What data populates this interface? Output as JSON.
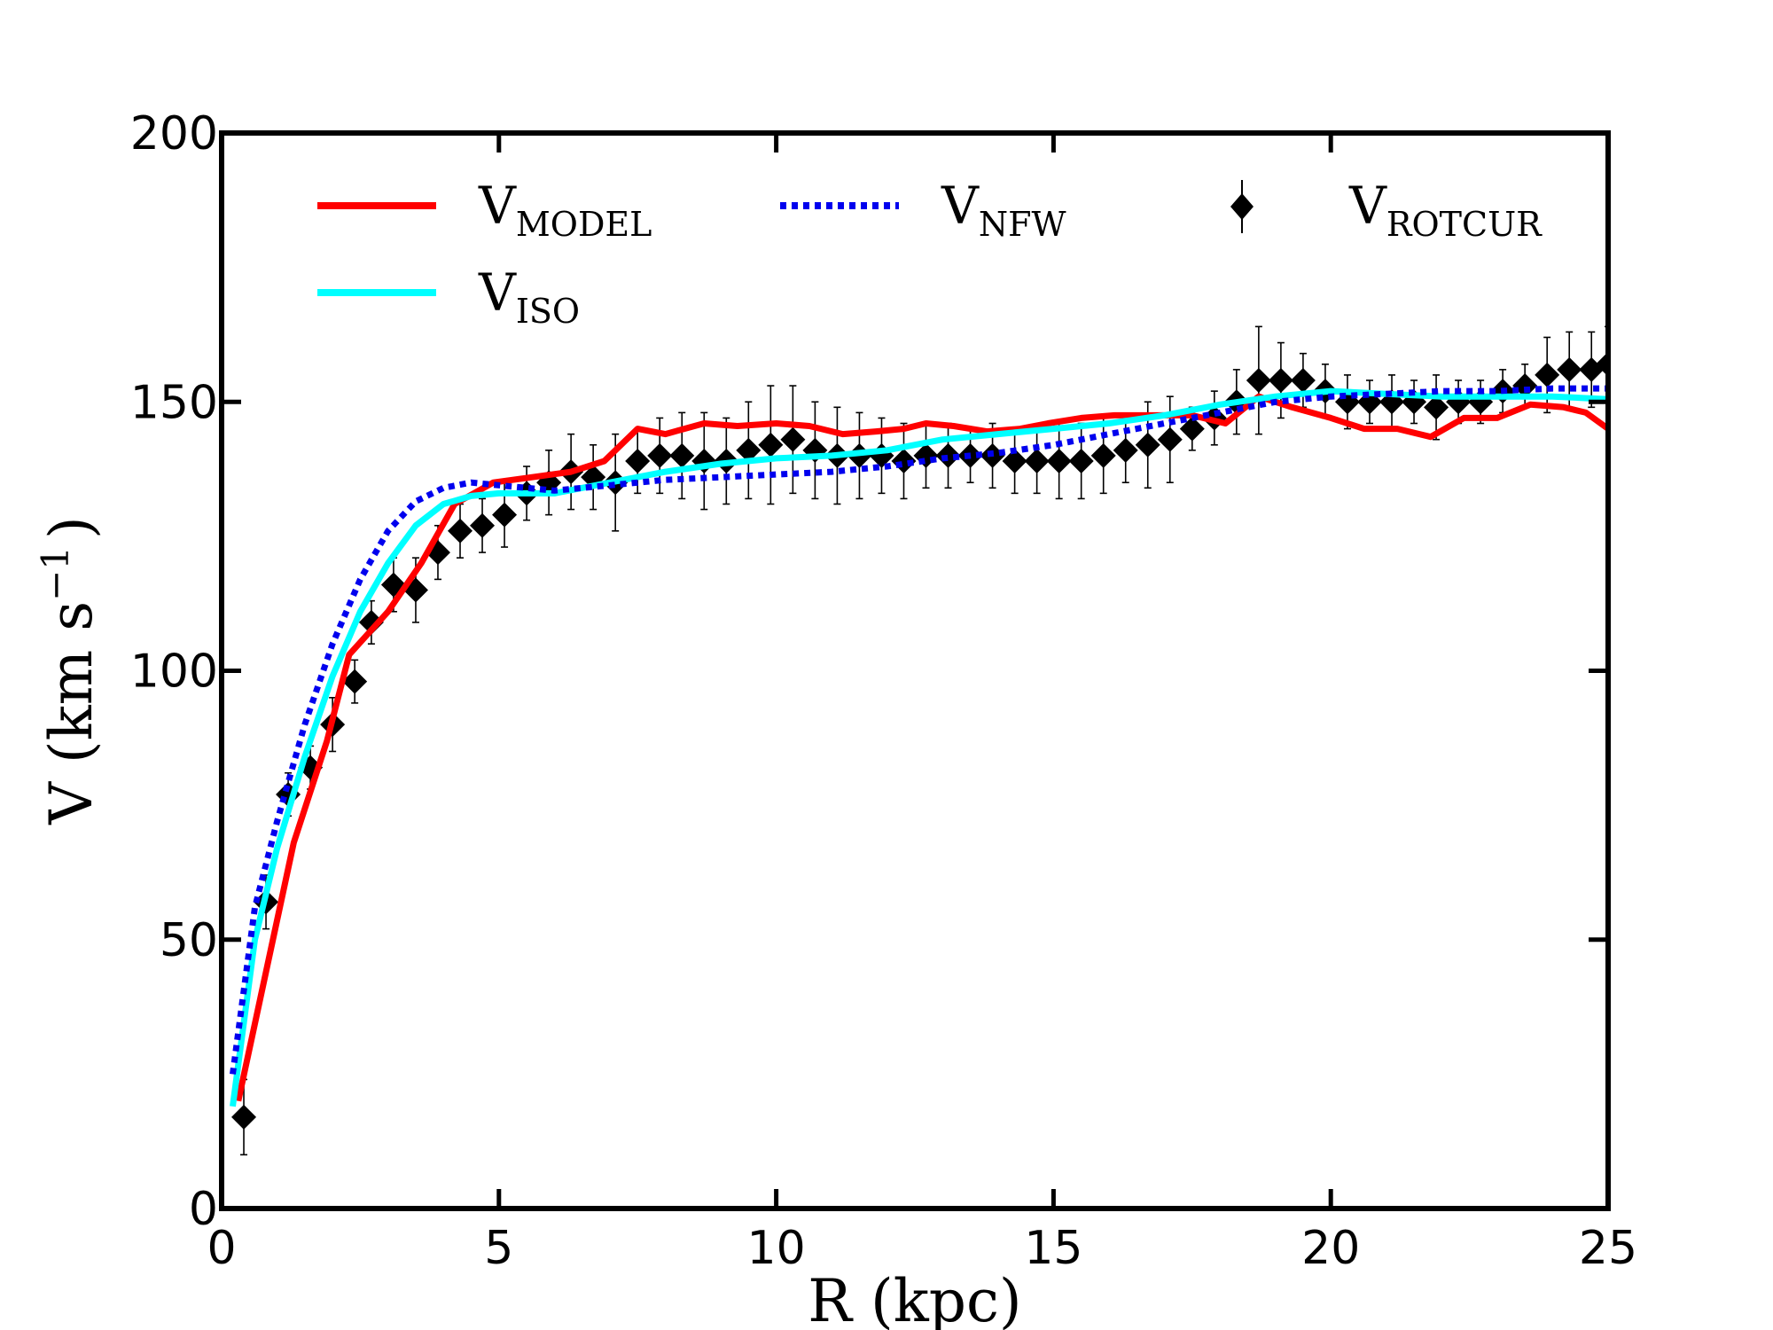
{
  "chart_data": {
    "type": "line",
    "title": "",
    "xlabel": "R (kpc)",
    "ylabel": "V (km s",
    "ylabel_sup": "−1",
    "ylabel_close": ")",
    "xlim": [
      0,
      25
    ],
    "ylim": [
      0,
      200
    ],
    "xticks": [
      0,
      5,
      10,
      15,
      20,
      25
    ],
    "yticks": [
      0,
      50,
      100,
      150,
      200
    ],
    "grid": false,
    "legend": {
      "placement": "top",
      "entries": [
        {
          "main": "V",
          "sub": "MODEL",
          "color": "#ff0000",
          "style": "solid"
        },
        {
          "main": "V",
          "sub": "NFW",
          "color": "#0000ee",
          "style": "dotted"
        },
        {
          "main": "V",
          "sub": "ROTCUR",
          "color": "#000000",
          "style": "marker"
        },
        {
          "main": "V",
          "sub": "ISO",
          "color": "#00ffff",
          "style": "solid"
        }
      ]
    },
    "series": [
      {
        "name": "V_MODEL",
        "color": "#ff0000",
        "style": "solid",
        "x": [
          0.3,
          1.3,
          1.9,
          2.3,
          3.0,
          3.6,
          4.2,
          4.9,
          5.6,
          6.3,
          6.9,
          7.5,
          8.0,
          8.7,
          9.3,
          10.0,
          10.6,
          11.2,
          11.8,
          12.3,
          12.7,
          13.2,
          13.8,
          14.4,
          14.9,
          15.5,
          16.1,
          16.8,
          17.5,
          18.1,
          18.7,
          19.3,
          20.0,
          20.6,
          21.2,
          21.8,
          22.4,
          23.0,
          23.6,
          24.2,
          24.6,
          25.0
        ],
        "values": [
          20,
          68,
          87,
          103,
          111,
          120,
          131,
          135,
          136,
          137,
          139,
          145,
          144,
          146,
          145.5,
          146,
          145.5,
          144,
          144.5,
          145,
          146,
          145.5,
          144.5,
          145,
          146,
          147,
          147.5,
          147.5,
          147.5,
          146,
          151,
          149,
          147,
          145,
          145,
          143.5,
          147,
          147,
          149.5,
          149,
          148,
          145
        ]
      },
      {
        "name": "V_ISO",
        "color": "#00ffff",
        "style": "solid",
        "x": [
          0.2,
          0.6,
          1.0,
          1.5,
          2.0,
          2.5,
          3.0,
          3.5,
          4.0,
          4.5,
          5.0,
          6.0,
          7.0,
          8.0,
          9.0,
          10.0,
          11.0,
          12.0,
          13.0,
          14.0,
          15.0,
          16.0,
          17.0,
          18.0,
          19.0,
          20.0,
          21.0,
          22.0,
          23.0,
          24.0,
          25.0
        ],
        "values": [
          19,
          50,
          67,
          84,
          99,
          111,
          120,
          127,
          131,
          132.5,
          133,
          133,
          135,
          137,
          138.5,
          139.5,
          140,
          141,
          143,
          144,
          145,
          146,
          147.5,
          149.5,
          151,
          152,
          151.5,
          151,
          151,
          151,
          150.5
        ]
      },
      {
        "name": "V_NFW",
        "color": "#0000ee",
        "style": "dotted",
        "x": [
          0.2,
          0.6,
          1.0,
          1.5,
          2.0,
          2.5,
          3.0,
          3.5,
          4.0,
          4.5,
          5.0,
          5.5,
          6.0,
          7.0,
          8.0,
          9.0,
          10.0,
          11.0,
          12.0,
          13.0,
          14.0,
          15.0,
          16.0,
          17.0,
          18.0,
          19.0,
          20.0,
          21.0,
          22.0,
          23.0,
          24.0,
          25.0
        ],
        "values": [
          25,
          56,
          72,
          90,
          105,
          117,
          126,
          131.5,
          134,
          135,
          134.5,
          134,
          133.5,
          134.5,
          135.5,
          136,
          136.5,
          137,
          138,
          139.5,
          140.5,
          142,
          144,
          146,
          148,
          150,
          151,
          151.5,
          152,
          152,
          152.5,
          152.5
        ]
      }
    ],
    "points": {
      "name": "V_ROTCUR",
      "color": "#000000",
      "marker": "diamond",
      "x": [
        0.4,
        0.8,
        1.2,
        1.6,
        2.0,
        2.4,
        2.7,
        3.1,
        3.5,
        3.9,
        4.3,
        4.7,
        5.1,
        5.5,
        5.9,
        6.3,
        6.7,
        7.1,
        7.5,
        7.9,
        8.3,
        8.7,
        9.1,
        9.5,
        9.9,
        10.3,
        10.7,
        11.1,
        11.5,
        11.9,
        12.3,
        12.7,
        13.1,
        13.5,
        13.9,
        14.3,
        14.7,
        15.1,
        15.5,
        15.9,
        16.3,
        16.7,
        17.1,
        17.5,
        17.9,
        18.3,
        18.7,
        19.1,
        19.5,
        19.9,
        20.3,
        20.7,
        21.1,
        21.5,
        21.9,
        22.3,
        22.7,
        23.1,
        23.5,
        23.9,
        24.3,
        24.7,
        25.0
      ],
      "values": [
        17,
        57,
        77,
        82,
        90,
        98,
        109,
        116,
        115,
        122,
        126,
        127,
        129,
        133,
        135,
        137,
        136,
        135,
        139,
        140,
        140,
        139,
        139,
        141,
        142,
        143,
        141,
        140,
        140,
        140,
        139,
        140,
        140,
        140,
        140,
        139,
        139,
        139,
        139,
        140,
        141,
        142,
        143,
        145,
        147,
        150,
        154,
        154,
        154,
        152,
        150,
        150,
        150,
        150,
        149,
        150,
        150,
        152,
        153,
        155,
        156,
        156,
        157
      ],
      "errors": [
        7,
        5,
        4,
        4,
        5,
        4,
        4,
        5,
        6,
        5,
        5,
        5,
        6,
        5,
        6,
        7,
        6,
        9,
        6,
        7,
        8,
        9,
        8,
        9,
        11,
        10,
        9,
        9,
        8,
        7,
        7,
        6,
        6,
        5,
        6,
        6,
        6,
        7,
        7,
        7,
        6,
        8,
        8,
        4,
        5,
        6,
        10,
        7,
        5,
        5,
        5,
        4,
        5,
        4,
        6,
        4,
        4,
        4,
        4,
        7,
        7,
        7,
        7
      ]
    }
  }
}
